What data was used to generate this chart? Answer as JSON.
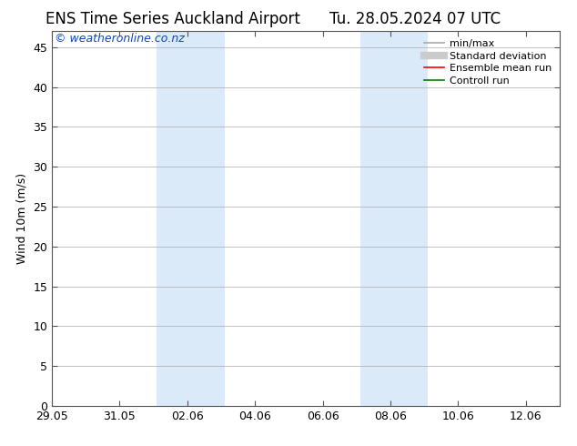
{
  "title_left": "ENS Time Series Auckland Airport",
  "title_right": "Tu. 28.05.2024 07 UTC",
  "ylabel": "Wind 10m (m/s)",
  "watermark": "© weatheronline.co.nz",
  "ylim": [
    0,
    47
  ],
  "yticks": [
    0,
    5,
    10,
    15,
    20,
    25,
    30,
    35,
    40,
    45
  ],
  "xtick_labels": [
    "29.05",
    "31.05",
    "02.06",
    "04.06",
    "06.06",
    "08.06",
    "10.06",
    "12.06"
  ],
  "xtick_positions": [
    0,
    2,
    4,
    6,
    8,
    10,
    12,
    14
  ],
  "x_min": 0,
  "x_max": 15.0,
  "shaded_bands": [
    {
      "x_start": 3.1,
      "x_end": 5.1
    },
    {
      "x_start": 9.1,
      "x_end": 11.1
    }
  ],
  "shade_color": "#daeaf8",
  "bg_color": "#ffffff",
  "grid_color": "#aaaaaa",
  "legend_items": [
    {
      "label": "min/max",
      "color": "#aaaaaa",
      "lw": 1.2,
      "style": "-"
    },
    {
      "label": "Standard deviation",
      "color": "#cccccc",
      "lw": 6,
      "style": "-"
    },
    {
      "label": "Ensemble mean run",
      "color": "#ff0000",
      "lw": 1.2,
      "style": "-"
    },
    {
      "label": "Controll run",
      "color": "#008000",
      "lw": 1.2,
      "style": "-"
    }
  ],
  "title_fontsize": 12,
  "axis_fontsize": 9,
  "watermark_fontsize": 9,
  "watermark_color": "#1144bb"
}
